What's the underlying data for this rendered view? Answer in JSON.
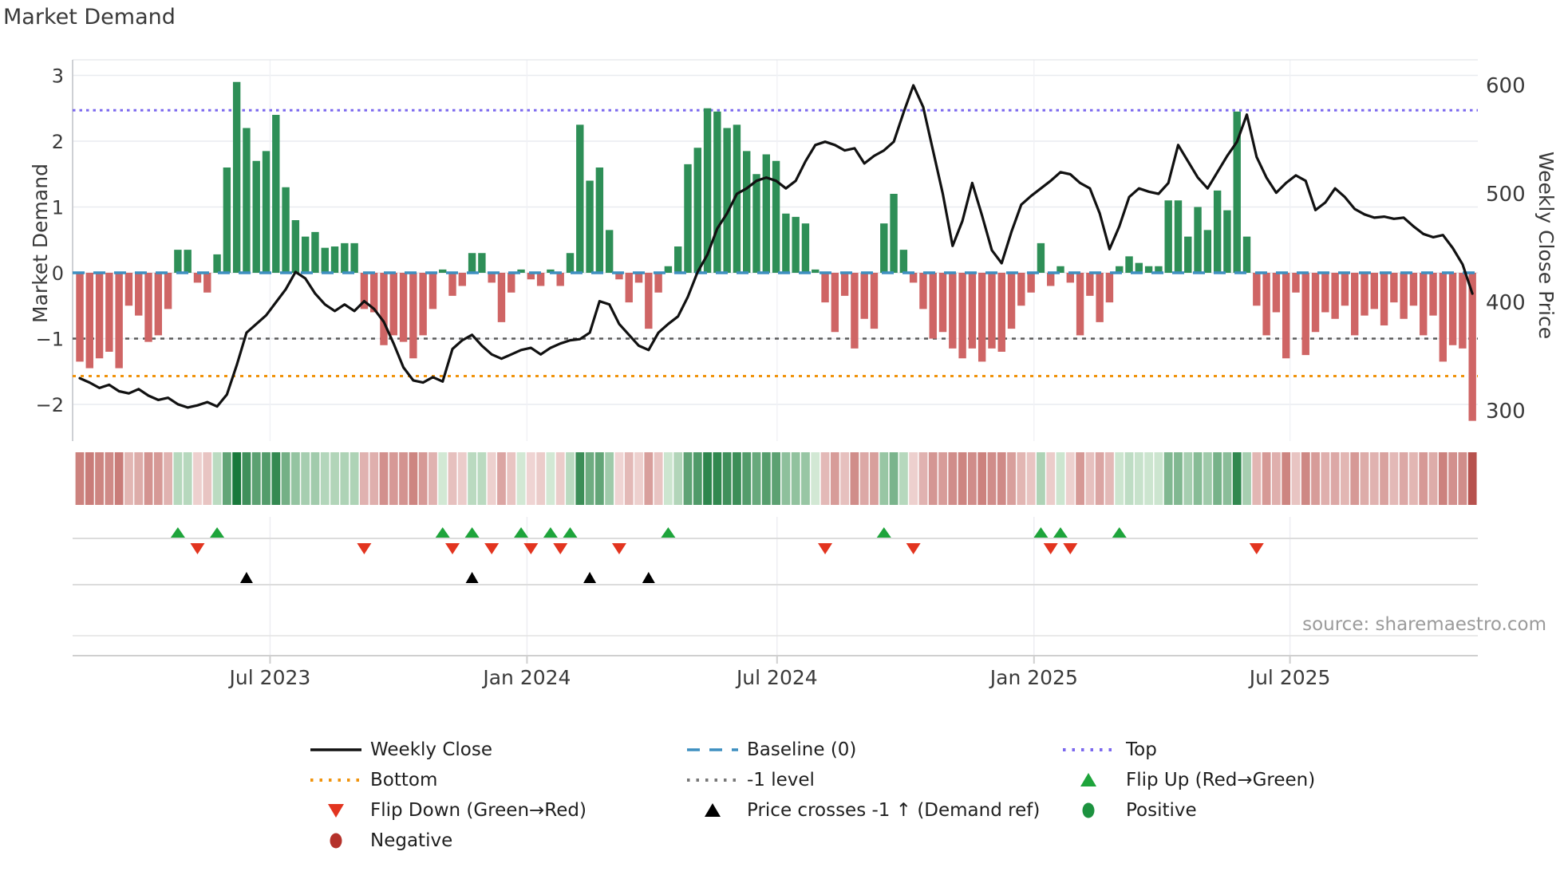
{
  "title": "Market Demand",
  "source": "source: sharemaestro.com",
  "axes": {
    "y_left_label": "Market Demand",
    "y_right_label": "Weekly Close Price",
    "y_left_ticks": [
      "3",
      "2",
      "1",
      "0",
      "−1",
      "−2"
    ],
    "y_left_tick_values": [
      3,
      2,
      1,
      0,
      -1,
      -2
    ],
    "y_right_ticks": [
      "600",
      "500",
      "400",
      "300"
    ],
    "y_right_tick_values": [
      600,
      500,
      400,
      300
    ],
    "x_tick_labels": [
      "Jul 2023",
      "Jan 2024",
      "Jul 2024",
      "Jan 2025",
      "Jul 2025"
    ]
  },
  "colors": {
    "bar_positive": "#2e8f57",
    "bar_negative": "#cf6565",
    "price_line": "#111111",
    "baseline": "#3e8fc0",
    "top_line": "#7b68ee",
    "bottom_line": "#f0930c",
    "minus_one_line": "#5a5a5a",
    "flip_up": "#1ea43b",
    "flip_down": "#e2341f",
    "cross_marker": "#000000",
    "positive_dot": "#1c923f",
    "negative_dot": "#b5322b",
    "grid": "#e9ebf0",
    "heat_pos_dark": "#19793b",
    "heat_pos_light": "#d9edda",
    "heat_neg_dark": "#b44b46",
    "heat_neg_light": "#f4e0df"
  },
  "chart_data": {
    "type": "bar+line",
    "x_unit": "week",
    "n_weeks": 143,
    "x_tick_weeks": [
      19.4,
      45.6,
      71.1,
      97.3,
      123.4
    ],
    "ylim_left": [
      -2.56,
      3.24
    ],
    "ylim_right": [
      272,
      624
    ],
    "grid": true,
    "legend_position": "bottom",
    "reference_lines": {
      "top": 2.47,
      "baseline": 0,
      "minus_one": -1,
      "bottom": -1.57
    },
    "series": [
      {
        "name": "Market Demand",
        "type": "bar",
        "axis": "left",
        "values": [
          -1.35,
          -1.45,
          -1.3,
          -1.2,
          -1.45,
          -0.5,
          -0.65,
          -1.05,
          -0.95,
          -0.55,
          0.35,
          0.35,
          -0.15,
          -0.3,
          0.28,
          1.6,
          2.9,
          2.2,
          1.7,
          1.85,
          2.4,
          1.3,
          0.8,
          0.55,
          0.62,
          0.38,
          0.4,
          0.45,
          0.45,
          -0.55,
          -0.6,
          -1.1,
          -0.95,
          -1.05,
          -1.3,
          -0.95,
          -0.55,
          0.05,
          -0.35,
          -0.2,
          0.3,
          0.3,
          -0.15,
          -0.75,
          -0.3,
          0.05,
          -0.1,
          -0.2,
          0.05,
          -0.2,
          0.3,
          2.25,
          1.4,
          1.6,
          0.65,
          -0.1,
          -0.45,
          -0.15,
          -0.85,
          -0.3,
          0.1,
          0.4,
          1.65,
          1.9,
          2.5,
          2.45,
          2.2,
          2.25,
          1.85,
          1.5,
          1.8,
          1.7,
          0.9,
          0.85,
          0.75,
          0.05,
          -0.45,
          -0.9,
          -0.35,
          -1.15,
          -0.7,
          -0.85,
          0.75,
          1.2,
          0.35,
          -0.15,
          -0.55,
          -1.0,
          -0.9,
          -1.15,
          -1.3,
          -1.15,
          -1.35,
          -1.15,
          -1.2,
          -0.85,
          -0.5,
          -0.3,
          0.45,
          -0.2,
          0.1,
          -0.15,
          -0.95,
          -0.35,
          -0.75,
          -0.45,
          0.1,
          0.25,
          0.15,
          0.1,
          0.1,
          1.1,
          1.1,
          0.55,
          1.0,
          0.65,
          1.25,
          0.95,
          2.45,
          0.55,
          -0.5,
          -0.95,
          -0.6,
          -1.3,
          -0.3,
          -1.25,
          -0.9,
          -0.6,
          -0.7,
          -0.5,
          -0.95,
          -0.65,
          -0.55,
          -0.8,
          -0.45,
          -0.7,
          -0.5,
          -0.95,
          -0.65,
          -1.35,
          -1.1,
          -1.15,
          -2.25
        ]
      },
      {
        "name": "Weekly Close",
        "type": "line",
        "axis": "right",
        "values": [
          330,
          326,
          321,
          324,
          318,
          316,
          320,
          314,
          310,
          312,
          306,
          303,
          305,
          308,
          304,
          315,
          342,
          372,
          380,
          388,
          400,
          412,
          428,
          422,
          408,
          398,
          392,
          398,
          392,
          401,
          394,
          382,
          362,
          340,
          328,
          326,
          331,
          327,
          357,
          365,
          370,
          360,
          352,
          348,
          352,
          356,
          358,
          352,
          358,
          362,
          365,
          366,
          372,
          401,
          398,
          380,
          370,
          360,
          356,
          372,
          380,
          387,
          405,
          428,
          444,
          468,
          482,
          500,
          505,
          512,
          515,
          512,
          505,
          512,
          530,
          545,
          548,
          545,
          540,
          542,
          528,
          535,
          540,
          548,
          575,
          600,
          580,
          540,
          500,
          452,
          475,
          510,
          480,
          448,
          436,
          465,
          490,
          498,
          505,
          512,
          520,
          518,
          510,
          505,
          482,
          449,
          470,
          497,
          505,
          502,
          500,
          510,
          545,
          530,
          515,
          505,
          520,
          535,
          548,
          573,
          534,
          515,
          501,
          510,
          517,
          512,
          485,
          492,
          505,
          497,
          486,
          481,
          478,
          479,
          477,
          478,
          470,
          463,
          460,
          462,
          450,
          435,
          408
        ]
      }
    ],
    "markers": {
      "flip_up_weeks": [
        10,
        14,
        37,
        40,
        45,
        48,
        50,
        60,
        82,
        98,
        100,
        106
      ],
      "flip_down_weeks": [
        12,
        29,
        38,
        42,
        46,
        49,
        55,
        76,
        85,
        99,
        101,
        120
      ],
      "price_cross_minus1_weeks": [
        17,
        40,
        52,
        58
      ]
    },
    "heatmap": "diverging red-green colormap of weekly demand values"
  },
  "legend": {
    "items": [
      {
        "marker": "line",
        "color": "#111111",
        "label": "Weekly Close"
      },
      {
        "marker": "dash",
        "color": "#3e8fc0",
        "label": "Baseline (0)"
      },
      {
        "marker": "dots",
        "color": "#7b68ee",
        "label": "Top"
      },
      {
        "marker": "dots",
        "color": "#f0930c",
        "label": "Bottom"
      },
      {
        "marker": "dots",
        "color": "#777777",
        "label": "-1 level"
      },
      {
        "marker": "triangle-up",
        "color": "#1ea43b",
        "label": "Flip Up (Red→Green)"
      },
      {
        "marker": "triangle-down",
        "color": "#e2341f",
        "label": "Flip Down (Green→Red)"
      },
      {
        "marker": "triangle-up",
        "color": "#000000",
        "label": "Price crosses -1 ↑ (Demand ref)"
      },
      {
        "marker": "circle",
        "color": "#1c923f",
        "label": "Positive"
      },
      {
        "marker": "circle",
        "color": "#b5322b",
        "label": "Negative"
      }
    ]
  }
}
